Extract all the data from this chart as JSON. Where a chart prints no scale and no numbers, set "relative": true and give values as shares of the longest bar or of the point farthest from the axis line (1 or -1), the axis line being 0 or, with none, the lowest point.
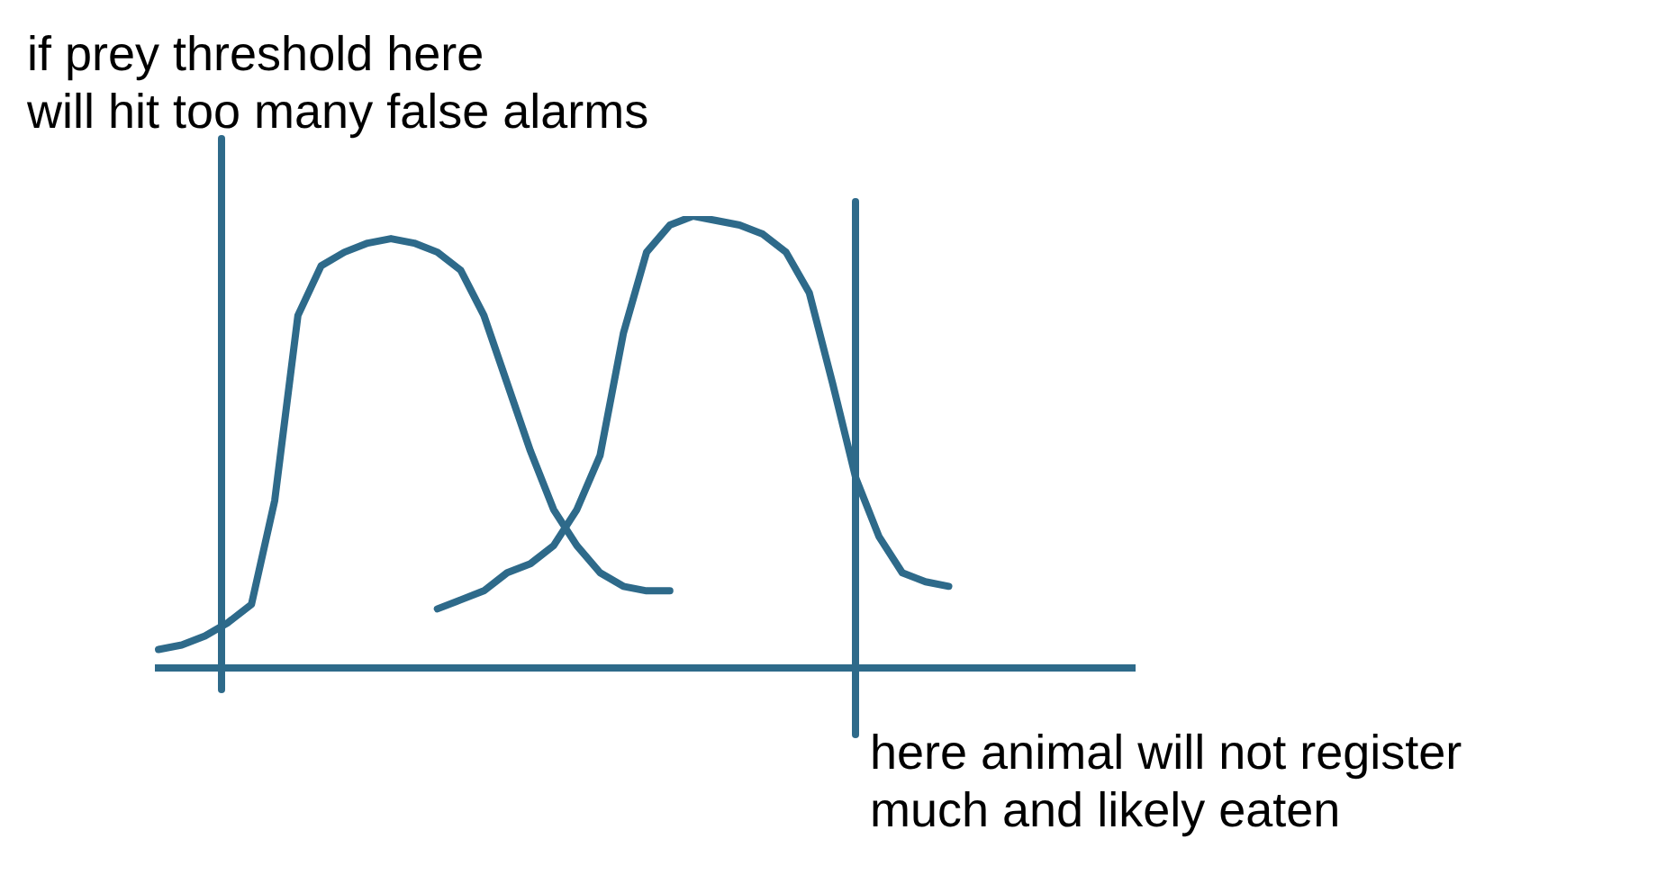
{
  "chart_data": {
    "type": "line",
    "relative": true,
    "grid": false,
    "legend": false,
    "marker": "none",
    "line_style": "solid",
    "categories": [
      null,
      null,
      null,
      null,
      null,
      null,
      null,
      null,
      null,
      null,
      null,
      null,
      null,
      null,
      null,
      null,
      null,
      null,
      null,
      null,
      null,
      null,
      null,
      null,
      null,
      null,
      null,
      null,
      null,
      null,
      null,
      null,
      null,
      null,
      null,
      null,
      null,
      null,
      null,
      null,
      null,
      null,
      null
    ],
    "series": [
      {
        "color": "#2e6a8a",
        "values": [
          0.04,
          0.05,
          0.07,
          0.1,
          0.14,
          0.37,
          0.78,
          0.89,
          0.92,
          0.94,
          0.95,
          0.94,
          0.92,
          0.88,
          0.78,
          0.63,
          0.48,
          0.35,
          0.27,
          0.21,
          0.18,
          0.17,
          0.17,
          null,
          null,
          null,
          null,
          null,
          null,
          null,
          null,
          null,
          null,
          null,
          null,
          null,
          null,
          null,
          null,
          null,
          null,
          null,
          null
        ]
      },
      {
        "color": "#2e6a8a",
        "values": [
          null,
          null,
          null,
          null,
          null,
          null,
          null,
          null,
          null,
          null,
          null,
          null,
          0.13,
          0.15,
          0.17,
          0.21,
          0.23,
          0.27,
          0.35,
          0.47,
          0.74,
          0.92,
          0.98,
          1,
          0.99,
          0.98,
          0.96,
          0.92,
          0.83,
          0.63,
          0.42,
          0.29,
          0.21,
          0.19,
          0.18,
          null,
          null,
          null,
          null,
          null,
          null,
          null,
          null
        ]
      }
    ],
    "annotations": [
      "if prey threshold here\nwill hit too many false alarms",
      "here animal will not register\nmuch and likely eaten"
    ]
  }
}
